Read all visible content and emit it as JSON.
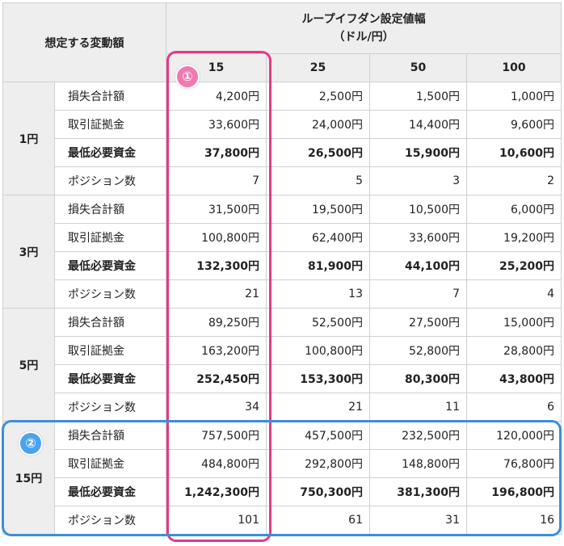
{
  "header": {
    "corner": "想定する変動額",
    "main_line1": "ループイフダン設定値幅",
    "main_line2": "（ドル/円）",
    "columns": [
      "15",
      "25",
      "50",
      "100"
    ]
  },
  "row_labels": [
    "損失合計額",
    "取引証拠金",
    "最低必要資金",
    "ポジション数"
  ],
  "groups": [
    {
      "label": "1円",
      "rows": [
        [
          "4,200円",
          "2,500円",
          "1,500円",
          "1,000円"
        ],
        [
          "33,600円",
          "24,000円",
          "14,400円",
          "9,600円"
        ],
        [
          "37,800円",
          "26,500円",
          "15,900円",
          "10,600円"
        ],
        [
          "7",
          "5",
          "3",
          "2"
        ]
      ]
    },
    {
      "label": "3円",
      "rows": [
        [
          "31,500円",
          "19,500円",
          "10,500円",
          "6,000円"
        ],
        [
          "100,800円",
          "62,400円",
          "33,600円",
          "19,200円"
        ],
        [
          "132,300円",
          "81,900円",
          "44,100円",
          "25,200円"
        ],
        [
          "21",
          "13",
          "7",
          "4"
        ]
      ]
    },
    {
      "label": "5円",
      "rows": [
        [
          "89,250円",
          "52,500円",
          "27,500円",
          "15,000円"
        ],
        [
          "163,200円",
          "100,800円",
          "52,800円",
          "28,800円"
        ],
        [
          "252,450円",
          "153,300円",
          "80,300円",
          "43,800円"
        ],
        [
          "34",
          "21",
          "11",
          "6"
        ]
      ]
    },
    {
      "label": "15円",
      "rows": [
        [
          "757,500円",
          "457,500円",
          "232,500円",
          "120,000円"
        ],
        [
          "484,800円",
          "292,800円",
          "148,800円",
          "76,800円"
        ],
        [
          "1,242,300円",
          "750,300円",
          "381,300円",
          "196,800円"
        ],
        [
          "101",
          "61",
          "31",
          "16"
        ]
      ]
    }
  ],
  "annotations": {
    "badge1": "①",
    "badge2": "②",
    "pink_color": "#e63984",
    "blue_color": "#3a8fdc"
  }
}
